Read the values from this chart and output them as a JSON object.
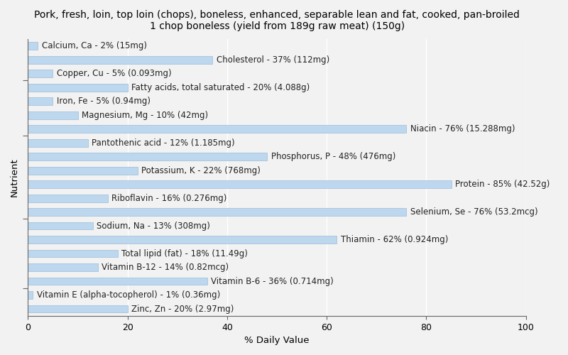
{
  "title": "Pork, fresh, loin, top loin (chops), boneless, enhanced, separable lean and fat, cooked, pan-broiled\n1 chop boneless (yield from 189g raw meat) (150g)",
  "xlabel": "% Daily Value",
  "ylabel": "Nutrient",
  "nutrients": [
    "Zinc, Zn - 20% (2.97mg)",
    "Vitamin E (alpha-tocopherol) - 1% (0.36mg)",
    "Vitamin B-6 - 36% (0.714mg)",
    "Vitamin B-12 - 14% (0.82mcg)",
    "Total lipid (fat) - 18% (11.49g)",
    "Thiamin - 62% (0.924mg)",
    "Sodium, Na - 13% (308mg)",
    "Selenium, Se - 76% (53.2mcg)",
    "Riboflavin - 16% (0.276mg)",
    "Protein - 85% (42.52g)",
    "Potassium, K - 22% (768mg)",
    "Phosphorus, P - 48% (476mg)",
    "Pantothenic acid - 12% (1.185mg)",
    "Niacin - 76% (15.288mg)",
    "Magnesium, Mg - 10% (42mg)",
    "Iron, Fe - 5% (0.94mg)",
    "Fatty acids, total saturated - 20% (4.088g)",
    "Copper, Cu - 5% (0.093mg)",
    "Cholesterol - 37% (112mg)",
    "Calcium, Ca - 2% (15mg)"
  ],
  "values": [
    20,
    1,
    36,
    14,
    18,
    62,
    13,
    76,
    16,
    85,
    22,
    48,
    12,
    76,
    10,
    5,
    20,
    5,
    37,
    2
  ],
  "bar_color": "#bdd7ee",
  "bar_edge_color": "#9bbcd8",
  "background_color": "#f2f2f2",
  "plot_bg_color": "#f2f2f2",
  "text_color": "#222222",
  "xlim": [
    0,
    100
  ],
  "xticks": [
    0,
    20,
    40,
    60,
    80,
    100
  ],
  "title_fontsize": 10,
  "label_fontsize": 8.5,
  "tick_fontsize": 9,
  "bar_height": 0.55,
  "text_threshold": 60,
  "figsize": [
    8.0,
    5.0
  ],
  "dpi": 100
}
